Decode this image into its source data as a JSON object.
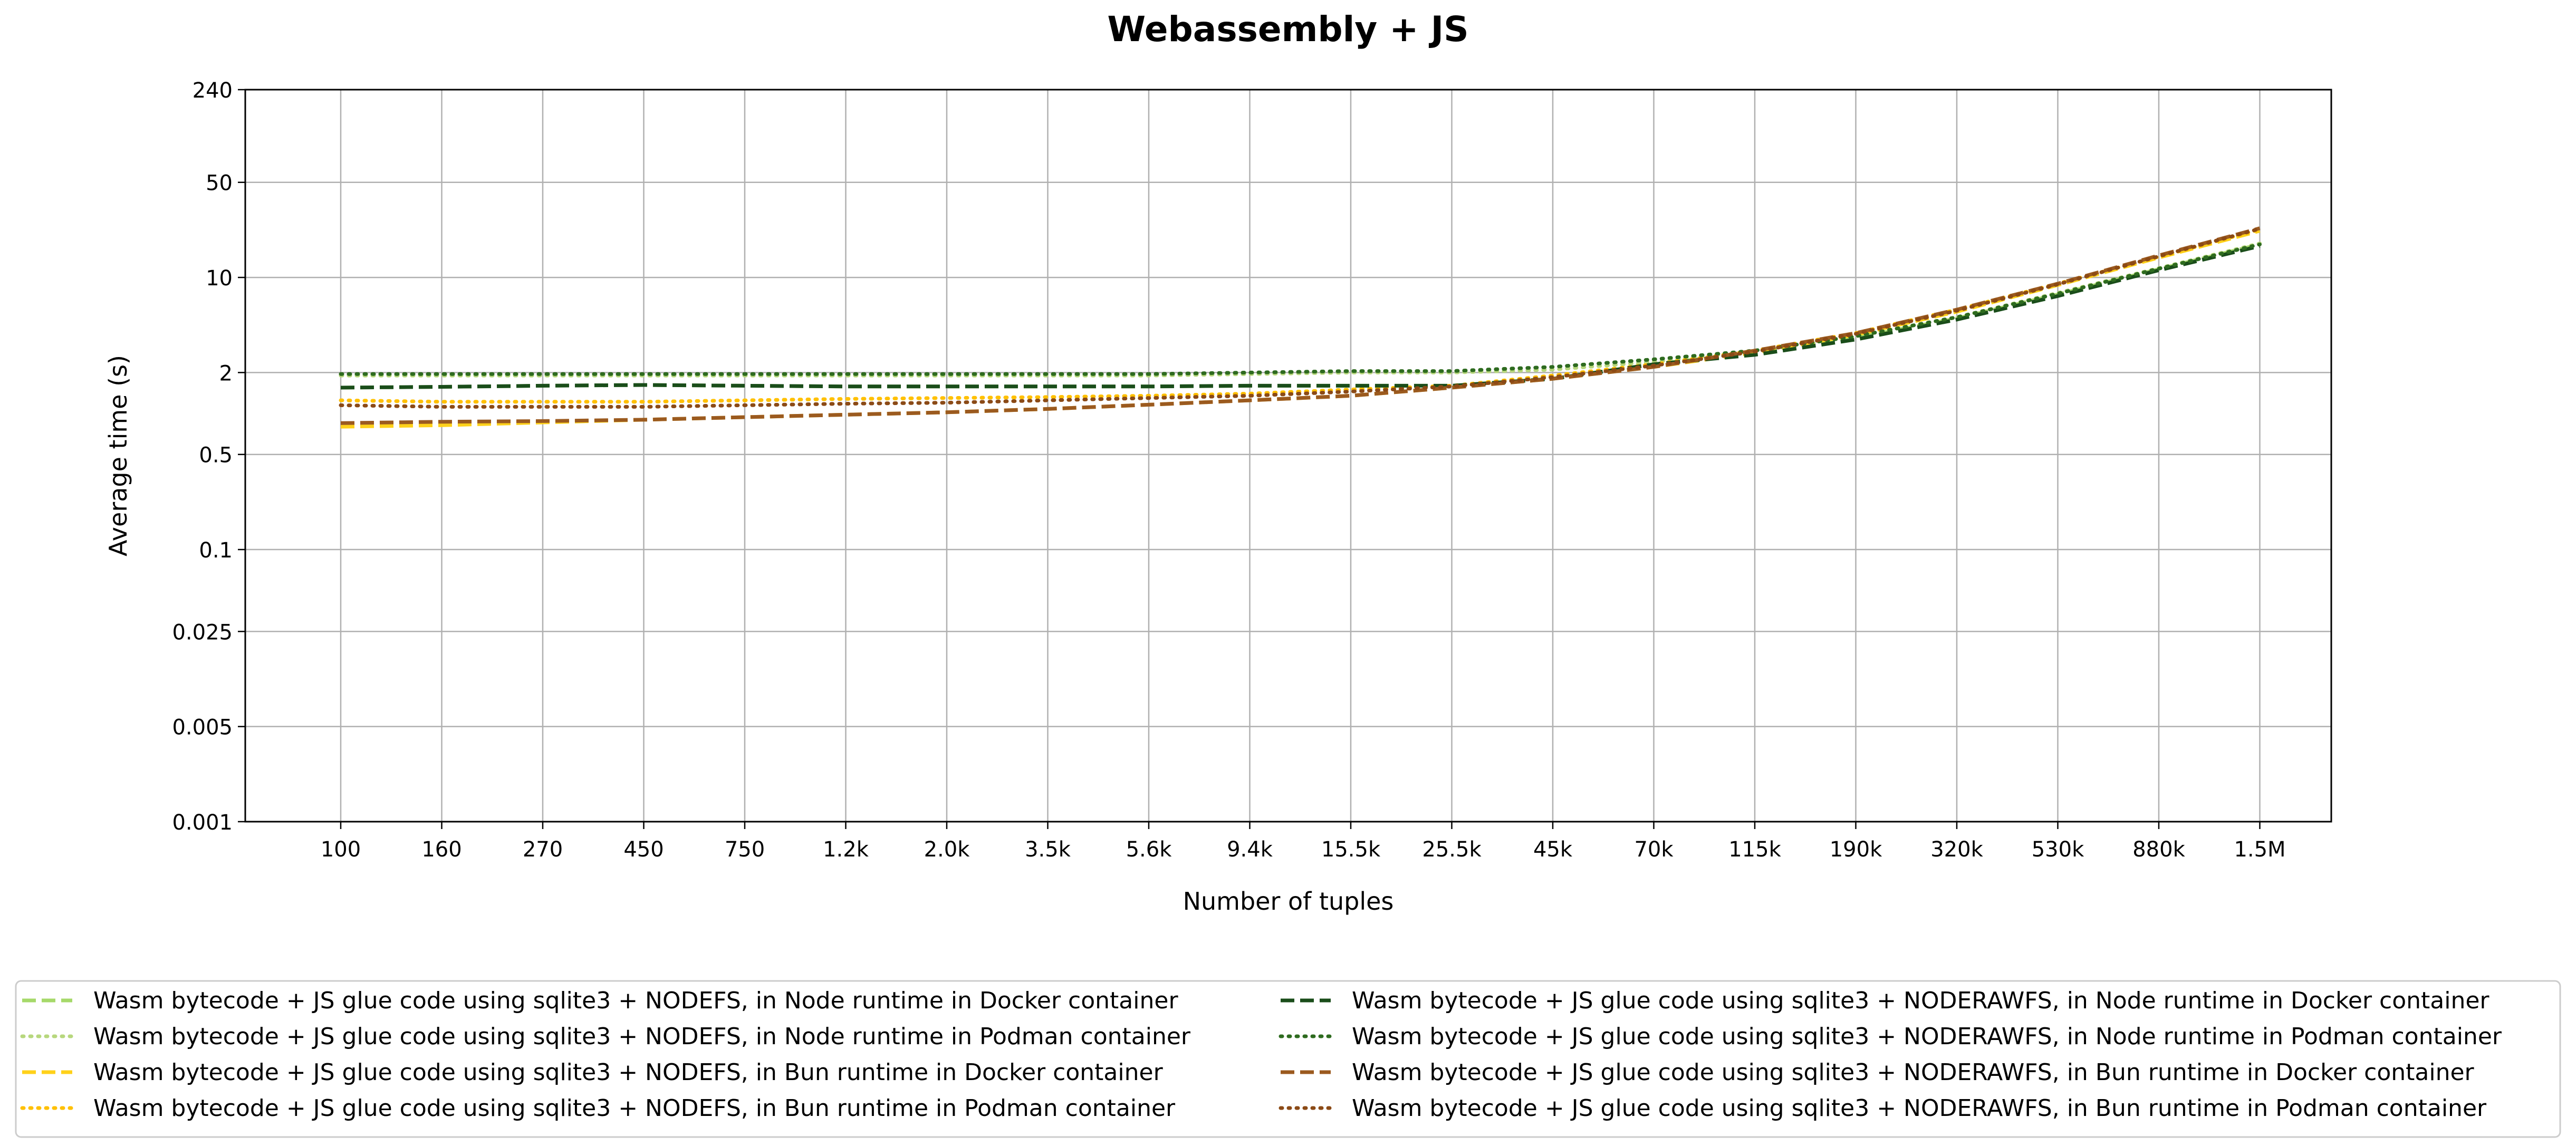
{
  "chart_data": {
    "type": "line",
    "title": "Webassembly + JS",
    "xlabel": "Number of tuples",
    "ylabel": "Average time (s)",
    "x_scale": "categorical",
    "y_scale": "log",
    "ylim": [
      0.001,
      240
    ],
    "yticks": [
      "0.001",
      "0.005",
      "0.025",
      "0.1",
      "0.5",
      "2",
      "10",
      "50",
      "240"
    ],
    "ytick_values": [
      0.001,
      0.005,
      0.025,
      0.1,
      0.5,
      2,
      10,
      50,
      240
    ],
    "categories": [
      "100",
      "160",
      "270",
      "450",
      "750",
      "1.2k",
      "2.0k",
      "3.5k",
      "5.6k",
      "9.4k",
      "15.5k",
      "25.5k",
      "45k",
      "70k",
      "115k",
      "190k",
      "320k",
      "530k",
      "880k",
      "1.5M"
    ],
    "x_values": [
      100,
      160,
      270,
      450,
      750,
      1200,
      2000,
      3500,
      5600,
      9400,
      15500,
      25500,
      45000,
      70000,
      115000,
      190000,
      320000,
      530000,
      880000,
      1500000
    ],
    "grid": true,
    "legend_position": "bottom",
    "legend_columns": 2,
    "series": [
      {
        "name": "Wasm bytecode + JS glue code using sqlite3 + NODEFS, in Node runtime in Docker container",
        "color": "#a6d96a",
        "dash": "dashed",
        "values": [
          1.55,
          1.57,
          1.6,
          1.62,
          1.6,
          1.58,
          1.58,
          1.58,
          1.58,
          1.6,
          1.6,
          1.6,
          1.8,
          2.3,
          2.8,
          3.6,
          5.0,
          7.5,
          11.5,
          17.5
        ]
      },
      {
        "name": "Wasm bytecode + JS glue code using sqlite3 + NODEFS, in Node runtime in Podman container",
        "color": "#b7d77d",
        "dash": "dotted",
        "values": [
          1.9,
          1.9,
          1.9,
          1.9,
          1.9,
          1.9,
          1.9,
          1.9,
          1.9,
          1.95,
          2.0,
          2.0,
          2.1,
          2.4,
          2.9,
          3.7,
          5.1,
          7.7,
          11.7,
          17.8
        ]
      },
      {
        "name": "Wasm bytecode + JS glue code using sqlite3 + NODEFS, in Bun runtime in Docker container",
        "color": "#ffd11a",
        "dash": "dashed",
        "values": [
          0.8,
          0.82,
          0.86,
          0.9,
          0.94,
          0.98,
          1.02,
          1.08,
          1.16,
          1.25,
          1.35,
          1.55,
          1.8,
          2.2,
          2.8,
          3.8,
          5.6,
          8.8,
          14.0,
          22.0
        ]
      },
      {
        "name": "Wasm bytecode + JS glue code using sqlite3 + NODEFS, in Bun runtime in Podman container",
        "color": "#ffc000",
        "dash": "dotted",
        "values": [
          1.25,
          1.22,
          1.22,
          1.22,
          1.25,
          1.28,
          1.3,
          1.32,
          1.35,
          1.4,
          1.5,
          1.6,
          1.9,
          2.3,
          2.9,
          3.9,
          5.8,
          9.0,
          14.2,
          22.5
        ]
      },
      {
        "name": "Wasm bytecode + JS glue code using sqlite3 + NODERAWFS, in Node runtime in Docker container",
        "color": "#1a4d1a",
        "dash": "dashed",
        "values": [
          1.55,
          1.57,
          1.6,
          1.62,
          1.6,
          1.58,
          1.58,
          1.58,
          1.58,
          1.6,
          1.6,
          1.6,
          1.8,
          2.3,
          2.7,
          3.5,
          4.9,
          7.3,
          11.3,
          17.0
        ]
      },
      {
        "name": "Wasm bytecode + JS glue code using sqlite3 + NODERAWFS, in Node runtime in Podman container",
        "color": "#2e6b1f",
        "dash": "dotted",
        "values": [
          1.95,
          1.95,
          1.95,
          1.95,
          1.95,
          1.95,
          1.95,
          1.95,
          1.95,
          2.0,
          2.05,
          2.05,
          2.2,
          2.5,
          2.9,
          3.7,
          5.1,
          7.6,
          11.6,
          17.5
        ]
      },
      {
        "name": "Wasm bytecode + JS glue code using sqlite3 + NODERAWFS, in Bun runtime in Docker container",
        "color": "#9b5a1f",
        "dash": "dashed",
        "values": [
          0.85,
          0.87,
          0.88,
          0.9,
          0.94,
          0.98,
          1.02,
          1.08,
          1.16,
          1.25,
          1.35,
          1.55,
          1.8,
          2.2,
          2.9,
          3.9,
          5.8,
          9.0,
          14.5,
          23.0
        ]
      },
      {
        "name": "Wasm bytecode + JS glue code using sqlite3 + NODERAWFS, in Bun runtime in Podman container",
        "color": "#8b4a16",
        "dash": "dotted",
        "values": [
          1.15,
          1.12,
          1.12,
          1.12,
          1.15,
          1.18,
          1.2,
          1.25,
          1.3,
          1.35,
          1.45,
          1.58,
          1.85,
          2.25,
          2.85,
          3.85,
          5.7,
          8.9,
          14.3,
          22.8
        ]
      }
    ]
  }
}
